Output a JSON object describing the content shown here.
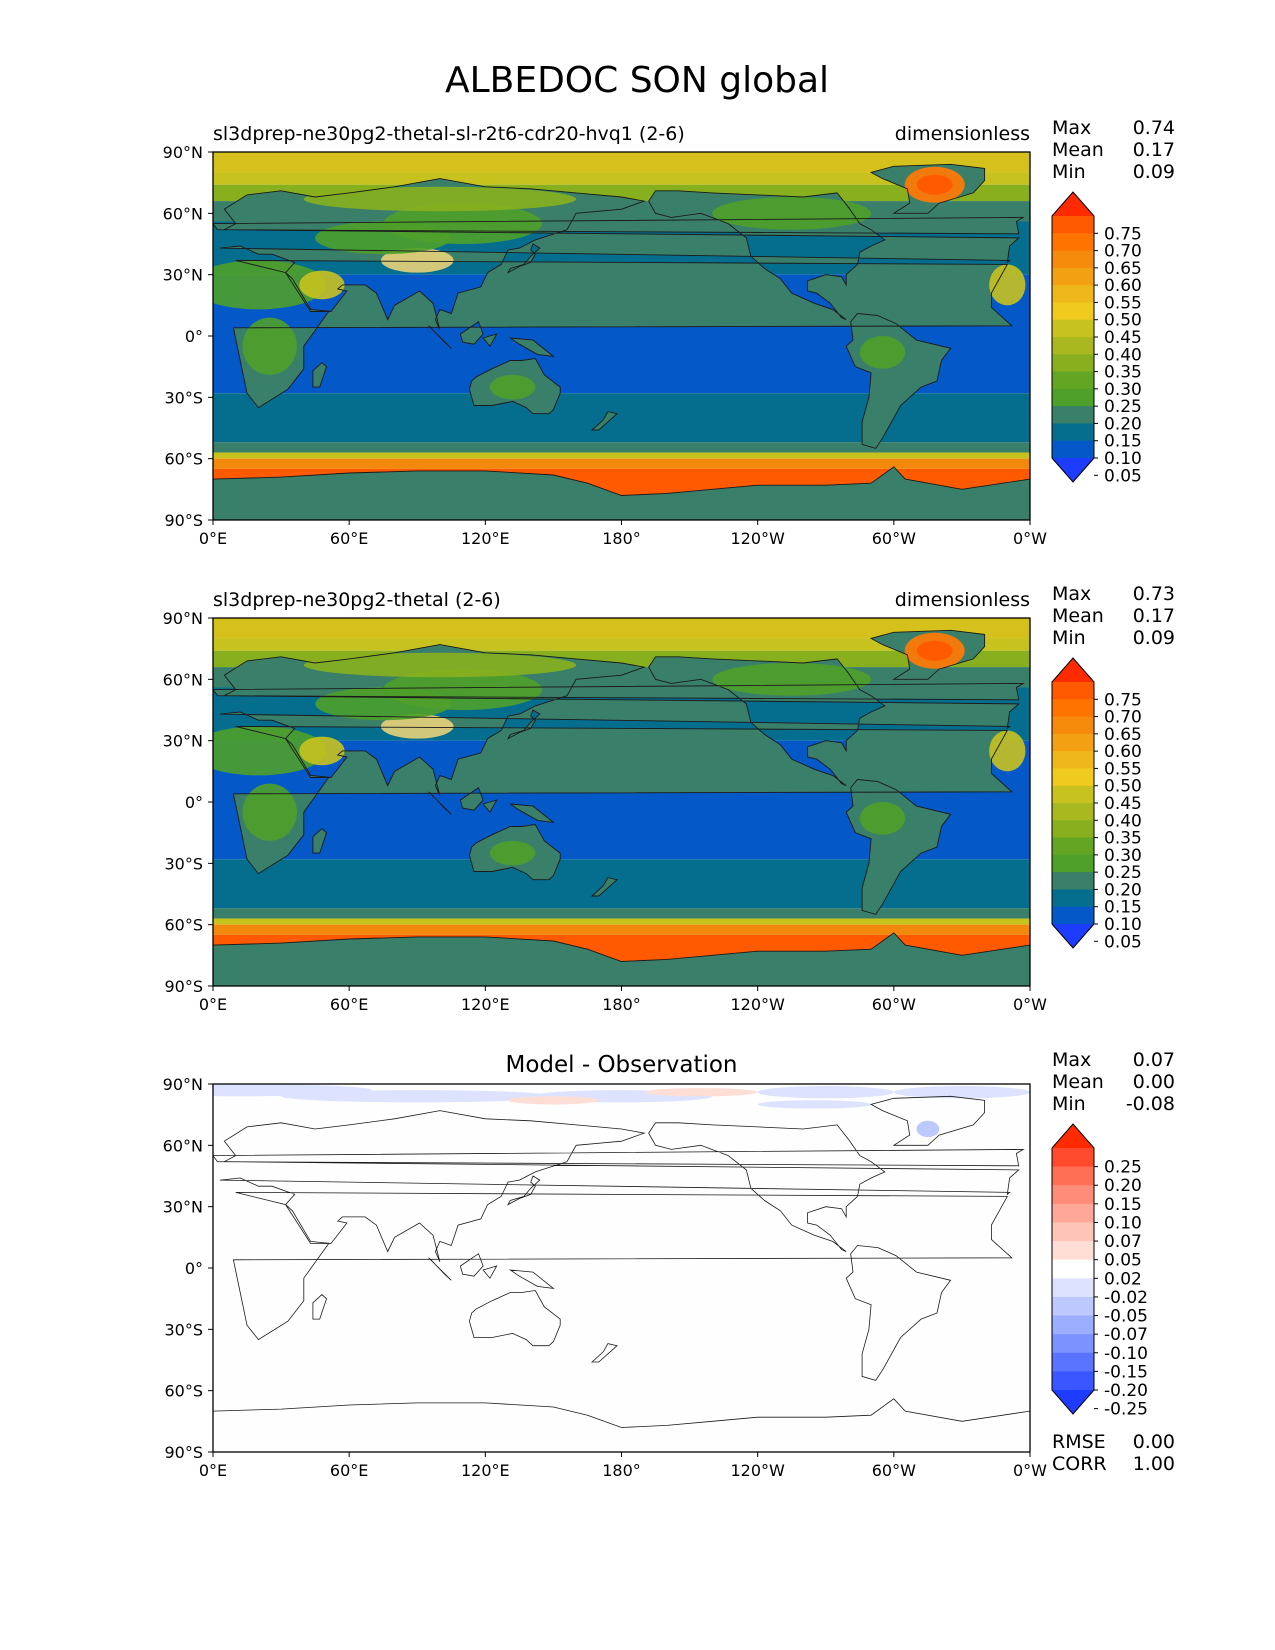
{
  "title": "ALBEDOC SON global",
  "colors": {
    "ocean_tropical": "#0558C8",
    "ocean_mid": "#056E8F",
    "land_low": "#3A7F6A",
    "land_green": "#4FA02A",
    "land_yellow": "#C8C21E",
    "high_orange": "#F3890C",
    "ice_orange": "#FF5A00",
    "colorbar_low": "#1E3CFF",
    "colorbar_high": "#FF2A00"
  },
  "x_ticks": [
    "0°E",
    "60°E",
    "120°E",
    "180°",
    "120°W",
    "60°W",
    "0°W"
  ],
  "y_ticks": [
    "90°N",
    "60°N",
    "30°N",
    "0°",
    "30°S",
    "60°S",
    "90°S"
  ],
  "panels": [
    {
      "left_title": "sl3dprep-ne30pg2-thetal-sl-r2t6-cdr20-hvq1 (2-6)",
      "center_title": "",
      "right_title": "dimensionless",
      "stats": [
        {
          "label": "Max",
          "value": "0.74"
        },
        {
          "label": "Mean",
          "value": "0.17"
        },
        {
          "label": "Min",
          "value": "0.09"
        }
      ],
      "colorbar_labels": [
        "0.75",
        "0.70",
        "0.65",
        "0.60",
        "0.55",
        "0.50",
        "0.45",
        "0.40",
        "0.35",
        "0.30",
        "0.25",
        "0.20",
        "0.15",
        "0.10",
        "0.05"
      ],
      "colorbar_colors": [
        "#FF2A00",
        "#FF5A00",
        "#FF7300",
        "#F68A0A",
        "#F3A012",
        "#F0B71A",
        "#F0CB1E",
        "#C8C21E",
        "#A8B81E",
        "#88B01E",
        "#62A624",
        "#4FA02A",
        "#3A7F6A",
        "#056E8F",
        "#0558C8",
        "#1E3CFF"
      ],
      "field": "model"
    },
    {
      "left_title": "sl3dprep-ne30pg2-thetal (2-6)",
      "center_title": "",
      "right_title": "dimensionless",
      "stats": [
        {
          "label": "Max",
          "value": "0.73"
        },
        {
          "label": "Mean",
          "value": "0.17"
        },
        {
          "label": "Min",
          "value": "0.09"
        }
      ],
      "colorbar_labels": [
        "0.75",
        "0.70",
        "0.65",
        "0.60",
        "0.55",
        "0.50",
        "0.45",
        "0.40",
        "0.35",
        "0.30",
        "0.25",
        "0.20",
        "0.15",
        "0.10",
        "0.05"
      ],
      "colorbar_colors": [
        "#FF2A00",
        "#FF5A00",
        "#FF7300",
        "#F68A0A",
        "#F3A012",
        "#F0B71A",
        "#F0CB1E",
        "#C8C21E",
        "#A8B81E",
        "#88B01E",
        "#62A624",
        "#4FA02A",
        "#3A7F6A",
        "#056E8F",
        "#0558C8",
        "#1E3CFF"
      ],
      "field": "model"
    },
    {
      "left_title": "",
      "center_title": "Model - Observation",
      "right_title": "",
      "stats": [
        {
          "label": "Max",
          "value": "0.07"
        },
        {
          "label": "Mean",
          "value": "0.00"
        },
        {
          "label": "Min",
          "value": "-0.08"
        }
      ],
      "colorbar_labels": [
        "0.25",
        "0.20",
        "0.15",
        "0.10",
        "0.07",
        "0.05",
        "0.02",
        "-0.02",
        "-0.05",
        "-0.07",
        "-0.10",
        "-0.15",
        "-0.20",
        "-0.25"
      ],
      "colorbar_colors": [
        "#FF2A00",
        "#FF4A2E",
        "#FF6F55",
        "#FF8C78",
        "#FFA899",
        "#FFC4B8",
        "#FFDED6",
        "#FFFFFF",
        "#DCE2FF",
        "#BCC8FF",
        "#9CAEFF",
        "#7C92FF",
        "#5A74FF",
        "#3A56FF",
        "#1E3CFF"
      ],
      "bottom_stats": [
        {
          "label": "RMSE",
          "value": "0.00"
        },
        {
          "label": "CORR",
          "value": "1.00"
        }
      ],
      "field": "diff"
    }
  ]
}
